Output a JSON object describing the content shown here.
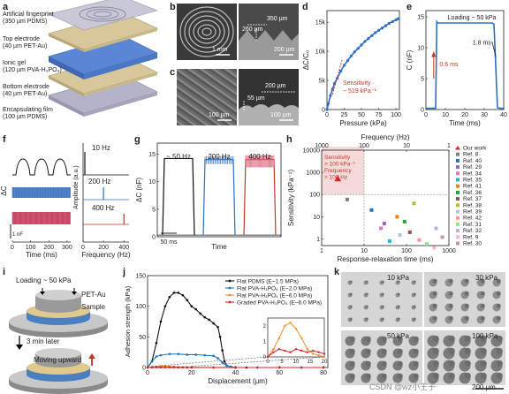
{
  "panel_a": {
    "label": "a",
    "layers": [
      {
        "name": "Artificial fingerprint",
        "detail": "(350 µm PDMS)"
      },
      {
        "name": "Top electrode",
        "detail": "(40 µm PET-Au)"
      },
      {
        "name": "Ionic gel",
        "detail": "(120 µm PVA-H₃PO₄)"
      },
      {
        "name": "Bottom electrode",
        "detail": "(40 µm PET-Au)"
      },
      {
        "name": "Encapsulating film",
        "detail": "(100 µm PDMS)"
      }
    ]
  },
  "panel_b": {
    "label": "b",
    "scale_left": "1 mm",
    "dim1": "260 µm",
    "dim2": "350 µm",
    "scale_right": "200 µm"
  },
  "panel_c": {
    "label": "c",
    "scale_left": "100 µm",
    "dim1": "55 µm",
    "dim2": "200 µm",
    "scale_right": "100 µm"
  },
  "panel_d": {
    "label": "d",
    "annotation": "Sensitivity\n~ 519 kPa⁻¹",
    "chart_data": {
      "type": "line",
      "xlabel": "Pressure (kPa)",
      "ylabel": "ΔC/C₀",
      "xlim": [
        0,
        105
      ],
      "ylim": [
        0,
        17000
      ],
      "xticks": [
        "0",
        "25",
        "50",
        "75",
        "100"
      ],
      "yticks": [
        "0",
        "5k",
        "10k",
        "15k"
      ],
      "x": [
        0,
        2,
        5,
        8,
        11,
        15,
        20,
        25,
        30,
        35,
        40,
        45,
        50,
        55,
        60,
        65,
        70,
        75,
        80,
        85,
        90,
        95,
        100,
        103
      ],
      "y": [
        0,
        1000,
        2400,
        3500,
        4500,
        5400,
        6600,
        7600,
        8400,
        9200,
        9900,
        10500,
        11100,
        11700,
        12200,
        12700,
        13200,
        13600,
        14000,
        14400,
        14800,
        15100,
        15400,
        15600
      ]
    }
  },
  "panel_e": {
    "label": "e",
    "loading": "Loading ~ 50 kPa",
    "rise": "0.6 ms",
    "fall": "1.8 ms",
    "chart_data": {
      "type": "line",
      "xlabel": "Time (ms)",
      "ylabel": "C (nF)",
      "xlim": [
        0,
        40
      ],
      "ylim": [
        0,
        16
      ],
      "xticks": [
        "0",
        "10",
        "20",
        "30",
        "40"
      ],
      "yticks": [
        "0",
        "5",
        "10",
        "15"
      ],
      "x": [
        0,
        5,
        5.6,
        6,
        10,
        15,
        20,
        25,
        30,
        34,
        35,
        36.8,
        38,
        40
      ],
      "y": [
        0.2,
        0.2,
        14.2,
        14.0,
        14.0,
        14.0,
        14.0,
        14.0,
        14.0,
        14.0,
        13.8,
        0.3,
        0.2,
        0.2
      ]
    }
  },
  "panel_f": {
    "label": "f",
    "ylabel_left": "ΔC",
    "scale": "1 nF",
    "xlabel_left": "Time (ms)",
    "xticks_left": [
      "0",
      "100",
      "200",
      "300"
    ],
    "ylabel_right": "Amplitude (a.u.)",
    "xlabel_right": "Frequency (Hz)",
    "xticks_right": [
      "0",
      "200",
      "400"
    ],
    "freqs": [
      "10 Hz",
      "200 Hz",
      "400 Hz"
    ]
  },
  "panel_g": {
    "label": "g",
    "ylabel": "ΔC (nF)",
    "xlabel": "Time",
    "yticks": [
      "0",
      "5",
      "10",
      "15"
    ],
    "scale": "50 ms",
    "segments": [
      "~ 50 Hz",
      "200 Hz",
      "400 Hz"
    ]
  },
  "panel_h": {
    "label": "h",
    "top_axis_label": "Frequency (Hz)",
    "top_ticks": [
      "1000",
      "100",
      "10",
      "1"
    ],
    "bottom_ticks": [
      "1",
      "10",
      "100",
      "1000"
    ],
    "xlabel": "Response-relaxation time (ms)",
    "ylabel": "Sensitivity (kPa⁻¹)",
    "yticks": [
      "1",
      "10",
      "100",
      "1000",
      "10000"
    ],
    "annotation": "Sensitivity\n> 100 kPa⁻¹\nFrequency\n> 100 Hz",
    "legend": [
      "Our work",
      "Ref. 8",
      "Ref. 40",
      "Ref. 29",
      "Ref. 34",
      "Ref. 35",
      "Ref. 41",
      "Ref. 36",
      "Ref. 37",
      "Ref. 38",
      "Ref. 39",
      "Ref. 42",
      "Ref. 31",
      "Ref. 32",
      "Ref. 9",
      "Ref. 30"
    ],
    "colors": [
      "#d62728",
      "#7f7f7f",
      "#1f77b4",
      "#9467bd",
      "#e377c2",
      "#17becf",
      "#ff7f0e",
      "#2ca02c",
      "#8c564b",
      "#bcbd22",
      "#aec7e8",
      "#ff9896",
      "#98df8a",
      "#c5b0d5",
      "#f7b6d2",
      "#c49c94"
    ],
    "chart_data": {
      "type": "scatter",
      "xscale": "log",
      "yscale": "log",
      "points": [
        {
          "x": 2.4,
          "y": 519,
          "ref": "Our work"
        },
        {
          "x": 4,
          "y": 60,
          "ref": "Ref. 8"
        },
        {
          "x": 15,
          "y": 20,
          "ref": "Ref. 40"
        },
        {
          "x": 30,
          "y": 5,
          "ref": "Ref. 29"
        },
        {
          "x": 25,
          "y": 3,
          "ref": "Ref. 34"
        },
        {
          "x": 40,
          "y": 0.8,
          "ref": "Ref. 35"
        },
        {
          "x": 60,
          "y": 10,
          "ref": "Ref. 41"
        },
        {
          "x": 90,
          "y": 6,
          "ref": "Ref. 36"
        },
        {
          "x": 120,
          "y": 2,
          "ref": "Ref. 37"
        },
        {
          "x": 150,
          "y": 40,
          "ref": "Ref. 38"
        },
        {
          "x": 70,
          "y": 1.5,
          "ref": "Ref. 39"
        },
        {
          "x": 200,
          "y": 0.9,
          "ref": "Ref. 42"
        },
        {
          "x": 300,
          "y": 0.6,
          "ref": "Ref. 31"
        },
        {
          "x": 500,
          "y": 3,
          "ref": "Ref. 32"
        },
        {
          "x": 450,
          "y": 0.4,
          "ref": "Ref. 9"
        },
        {
          "x": 700,
          "y": 1.2,
          "ref": "Ref. 30"
        }
      ]
    }
  },
  "panel_i": {
    "label": "i",
    "loading": "Loading ~ 50 kPa",
    "pet": "PET-Au",
    "sample": "Sample",
    "later": "3 min later",
    "moving": "Moving upward"
  },
  "panel_j": {
    "label": "j",
    "chart_data": {
      "type": "line",
      "xlabel": "Displacement (µm)",
      "ylabel": "Adhesion strength (kPa)",
      "xlim": [
        0,
        82
      ],
      "ylim": [
        0,
        150
      ],
      "xticks": [
        "0",
        "20",
        "40",
        "60",
        "80"
      ],
      "yticks": [
        "0",
        "50",
        "100",
        "150"
      ],
      "series": [
        {
          "name": "Flat PDMS (E~1.5 MPa)",
          "color": "#111111",
          "x": [
            0,
            2,
            4,
            6,
            8,
            10,
            12,
            14,
            16,
            18,
            20,
            22,
            24,
            26,
            28,
            30,
            32,
            33,
            34,
            35,
            36,
            38,
            40,
            45,
            50,
            60,
            70,
            80
          ],
          "y": [
            0,
            10,
            40,
            75,
            100,
            115,
            122,
            122,
            118,
            110,
            100,
            95,
            88,
            82,
            78,
            72,
            66,
            50,
            28,
            10,
            3,
            1,
            0,
            0,
            0,
            0,
            0,
            0
          ]
        },
        {
          "name": "Flat PVA-H₃PO₄ (E~2.0 MPa)",
          "color": "#1f77b4",
          "x": [
            0,
            2,
            4,
            6,
            10,
            14,
            18,
            22,
            26,
            30,
            32,
            34,
            36,
            38,
            40,
            50,
            60,
            70,
            80
          ],
          "y": [
            0,
            10,
            18,
            20,
            22,
            22,
            21,
            21,
            20,
            19,
            15,
            8,
            3,
            1,
            0,
            0,
            0,
            0,
            0
          ]
        },
        {
          "name": "Flat PVA-H₃PO₄ (E~6.0 MPa)",
          "color": "#f28e2b",
          "x": [
            0,
            2,
            4,
            6,
            8,
            10,
            12,
            14,
            16,
            18,
            20,
            30,
            40,
            60,
            80
          ],
          "y": [
            0,
            0.5,
            1.2,
            2.0,
            2.2,
            1.8,
            1.2,
            0.5,
            0.2,
            0.1,
            0,
            0,
            0,
            0,
            0
          ]
        },
        {
          "name": "Graded PVA-H₃PO₄ (E~6.0 MPa)",
          "color": "#d62728",
          "x": [
            0,
            2,
            4,
            6,
            8,
            10,
            12,
            14,
            16,
            18,
            20,
            30,
            40,
            60,
            80
          ],
          "y": [
            0,
            0.3,
            0.5,
            0.4,
            0.3,
            0.5,
            0.4,
            0.3,
            0.4,
            0.3,
            0.2,
            0.1,
            0,
            0,
            0
          ]
        }
      ],
      "inset": {
        "xlim": [
          0,
          20
        ],
        "ylim": [
          0,
          2.5
        ],
        "xticks": [
          "0",
          "5",
          "10",
          "15",
          "20"
        ],
        "yticks": [
          "0",
          "1",
          "2"
        ]
      }
    }
  },
  "panel_k": {
    "label": "k",
    "pressures": [
      "10 kPa",
      "30 kPa",
      "50 kPa",
      "100 kPa"
    ],
    "scale": "200 µm"
  },
  "watermark": "CSDN @wz小王子"
}
